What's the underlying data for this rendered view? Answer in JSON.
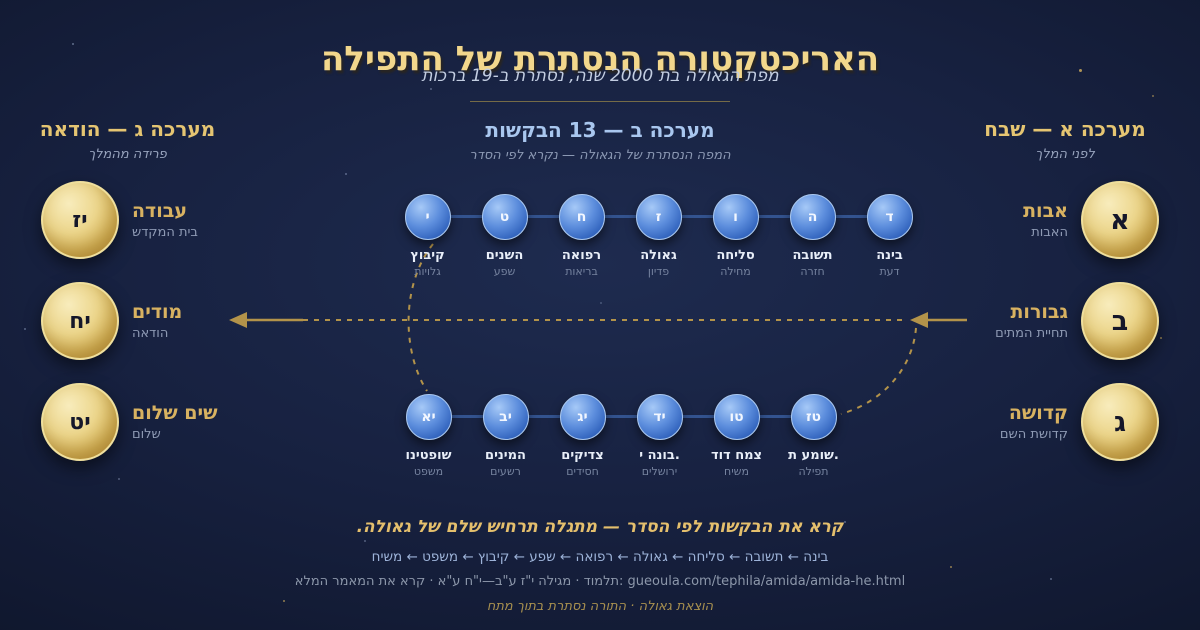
{
  "header": {
    "title": "האריכטקטורה הנסתרת של התפילה",
    "subtitle": "מפת הגאולה בת 2000 שנה, נסתרת ב-19 ברכות"
  },
  "acts": {
    "praise": {
      "heading": "מערכה א — שבח",
      "subheading": "לפני המלך",
      "items": [
        {
          "num": "א",
          "label": "אבות",
          "sublabel": "האבות"
        },
        {
          "num": "ב",
          "label": "גבורות",
          "sublabel": "תחיית המתים"
        },
        {
          "num": "ג",
          "label": "קדושה",
          "sublabel": "קדושת השם"
        }
      ]
    },
    "requests": {
      "heading": "מערכה ב — 13 הבקשות",
      "subheading": "המפה הנסתרת של הגאולה — נקרא לפי הסדר",
      "top_row": [
        {
          "num": "ד",
          "label": "בינה",
          "sublabel": "דעת"
        },
        {
          "num": "ה",
          "label": "תשובה",
          "sublabel": "חזרה"
        },
        {
          "num": "ו",
          "label": "סליחה",
          "sublabel": "מחילה"
        },
        {
          "num": "ז",
          "label": "גאולה",
          "sublabel": "פדיון"
        },
        {
          "num": "ח",
          "label": "רפואה",
          "sublabel": "בריאות"
        },
        {
          "num": "ט",
          "label": "השנים",
          "sublabel": "שפע"
        },
        {
          "num": "י",
          "label": "קיבוץ",
          "sublabel": "גלויות"
        }
      ],
      "bottom_row": [
        {
          "num": "יא",
          "label": "שופטינו",
          "sublabel": "משפט"
        },
        {
          "num": "יב",
          "label": "המינים",
          "sublabel": "רשעים"
        },
        {
          "num": "יג",
          "label": "צדיקים",
          "sublabel": "חסידים"
        },
        {
          "num": "יד",
          "label": "בונה י.",
          "sublabel": "ירושלים"
        },
        {
          "num": "טו",
          "label": "צמח דוד",
          "sublabel": "משיח"
        },
        {
          "num": "טז",
          "label": "שומע ת.",
          "sublabel": "תפילה"
        }
      ]
    },
    "thanks": {
      "heading": "מערכה ג — הודאה",
      "subheading": "פרידה מהמלך",
      "items": [
        {
          "num": "יז",
          "label": "עבודה",
          "sublabel": "בית המקדש"
        },
        {
          "num": "יח",
          "label": "מודים",
          "sublabel": "הודאה"
        },
        {
          "num": "יט",
          "label": "שים שלום",
          "sublabel": "שלום"
        }
      ]
    }
  },
  "footer": {
    "cta": "קרא את הבקשות לפי הסדר — מתגלה תרחיש שלם של גאולה.",
    "sequence": "בינה ← תשובה ← סליחה ← גאולה ← רפואה ← שפע ← קיבוץ ← משפט ← משיח",
    "source_text": "תלמוד · מגילה י\"ז ע\"ב—י\"ח ע\"א · קרא את המאמר המלא:",
    "source_url": "gueoula.com/tephila/amida/amida-he.html",
    "credit": "הוצאת גאולה · התורה נסתרת בתוך מתח"
  },
  "colors": {
    "background": "#131d38",
    "title_gold": "#f2d78c",
    "heading_gold": "#e5c572",
    "label_gold": "#d8b261",
    "center_heading_blue": "#a9c7ef",
    "sequence_blue": "#9db3d9",
    "source_gray": "#8c97aa",
    "credit_gold": "#a8904f",
    "arrow_gold": "#b3934a",
    "connector_blue": "#33538f",
    "label_white": "#e9eff9",
    "sub_gray": "#8e9ab4"
  }
}
